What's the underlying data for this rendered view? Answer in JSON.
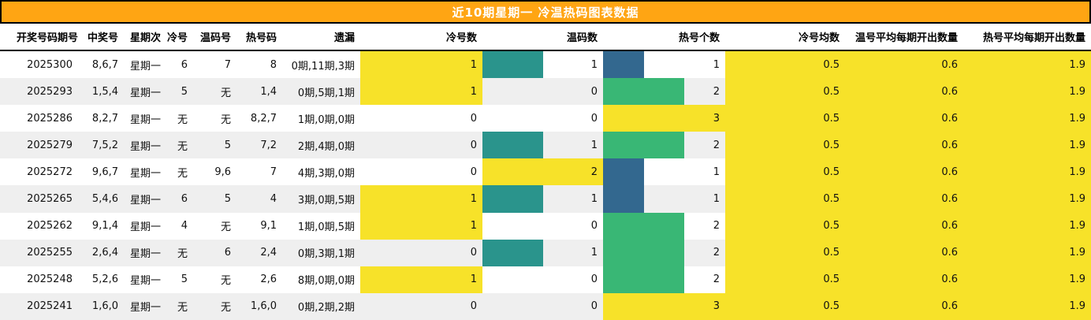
{
  "title": "近10期星期一 冷温热码图表数据",
  "colors": {
    "title_bg": "#ffa513",
    "title_text": "#ffffff",
    "row_alt_bg": "#efefef",
    "avg_bg": "#f7e229",
    "bar_yellow": "#f7e229",
    "bar_green": "#39b775",
    "bar_teal": "#2a948c",
    "bar_blue": "#33688f"
  },
  "columns": [
    {
      "key": "period",
      "label": "开奖号码期号"
    },
    {
      "key": "win",
      "label": "中奖号"
    },
    {
      "key": "weekday",
      "label": "星期次"
    },
    {
      "key": "cold",
      "label": "冷号"
    },
    {
      "key": "warm",
      "label": "温码号"
    },
    {
      "key": "hot",
      "label": "热号码"
    },
    {
      "key": "miss",
      "label": "遗漏"
    },
    {
      "key": "cold_count",
      "label": "冷号数"
    },
    {
      "key": "warm_count",
      "label": "温码数"
    },
    {
      "key": "hot_count",
      "label": "热号个数"
    },
    {
      "key": "cold_avg",
      "label": "冷号均数"
    },
    {
      "key": "warm_avg",
      "label": "温号平均每期开出数量"
    },
    {
      "key": "hot_avg",
      "label": "热号平均每期开出数量"
    }
  ],
  "bars": {
    "cold_count": {
      "max": 1,
      "colors": {
        "1": "#f7e229"
      }
    },
    "warm_count": {
      "max": 2,
      "colors": {
        "1": "#2a948c",
        "2": "#f7e229"
      }
    },
    "hot_count": {
      "max": 3,
      "colors": {
        "1": "#33688f",
        "2": "#39b775",
        "3": "#f7e229"
      }
    }
  },
  "rows": [
    {
      "period": "2025300",
      "win": "8,6,7",
      "weekday": "星期一",
      "cold": "6",
      "warm": "7",
      "hot": "8",
      "miss": "0期,11期,3期",
      "cold_count": 1,
      "warm_count": 1,
      "hot_count": 1,
      "cold_avg": "0.5",
      "warm_avg": "0.6",
      "hot_avg": "1.9"
    },
    {
      "period": "2025293",
      "win": "1,5,4",
      "weekday": "星期一",
      "cold": "5",
      "warm": "无",
      "hot": "1,4",
      "miss": "0期,5期,1期",
      "cold_count": 1,
      "warm_count": 0,
      "hot_count": 2,
      "cold_avg": "0.5",
      "warm_avg": "0.6",
      "hot_avg": "1.9"
    },
    {
      "period": "2025286",
      "win": "8,2,7",
      "weekday": "星期一",
      "cold": "无",
      "warm": "无",
      "hot": "8,2,7",
      "miss": "1期,0期,0期",
      "cold_count": 0,
      "warm_count": 0,
      "hot_count": 3,
      "cold_avg": "0.5",
      "warm_avg": "0.6",
      "hot_avg": "1.9"
    },
    {
      "period": "2025279",
      "win": "7,5,2",
      "weekday": "星期一",
      "cold": "无",
      "warm": "5",
      "hot": "7,2",
      "miss": "2期,4期,0期",
      "cold_count": 0,
      "warm_count": 1,
      "hot_count": 2,
      "cold_avg": "0.5",
      "warm_avg": "0.6",
      "hot_avg": "1.9"
    },
    {
      "period": "2025272",
      "win": "9,6,7",
      "weekday": "星期一",
      "cold": "无",
      "warm": "9,6",
      "hot": "7",
      "miss": "4期,3期,0期",
      "cold_count": 0,
      "warm_count": 2,
      "hot_count": 1,
      "cold_avg": "0.5",
      "warm_avg": "0.6",
      "hot_avg": "1.9"
    },
    {
      "period": "2025265",
      "win": "5,4,6",
      "weekday": "星期一",
      "cold": "6",
      "warm": "5",
      "hot": "4",
      "miss": "3期,0期,5期",
      "cold_count": 1,
      "warm_count": 1,
      "hot_count": 1,
      "cold_avg": "0.5",
      "warm_avg": "0.6",
      "hot_avg": "1.9"
    },
    {
      "period": "2025262",
      "win": "9,1,4",
      "weekday": "星期一",
      "cold": "4",
      "warm": "无",
      "hot": "9,1",
      "miss": "1期,0期,5期",
      "cold_count": 1,
      "warm_count": 0,
      "hot_count": 2,
      "cold_avg": "0.5",
      "warm_avg": "0.6",
      "hot_avg": "1.9"
    },
    {
      "period": "2025255",
      "win": "2,6,4",
      "weekday": "星期一",
      "cold": "无",
      "warm": "6",
      "hot": "2,4",
      "miss": "0期,3期,1期",
      "cold_count": 0,
      "warm_count": 1,
      "hot_count": 2,
      "cold_avg": "0.5",
      "warm_avg": "0.6",
      "hot_avg": "1.9"
    },
    {
      "period": "2025248",
      "win": "5,2,6",
      "weekday": "星期一",
      "cold": "5",
      "warm": "无",
      "hot": "2,6",
      "miss": "8期,0期,0期",
      "cold_count": 1,
      "warm_count": 0,
      "hot_count": 2,
      "cold_avg": "0.5",
      "warm_avg": "0.6",
      "hot_avg": "1.9"
    },
    {
      "period": "2025241",
      "win": "1,6,0",
      "weekday": "星期一",
      "cold": "无",
      "warm": "无",
      "hot": "1,6,0",
      "miss": "0期,2期,2期",
      "cold_count": 0,
      "warm_count": 0,
      "hot_count": 3,
      "cold_avg": "0.5",
      "warm_avg": "0.6",
      "hot_avg": "1.9"
    }
  ]
}
